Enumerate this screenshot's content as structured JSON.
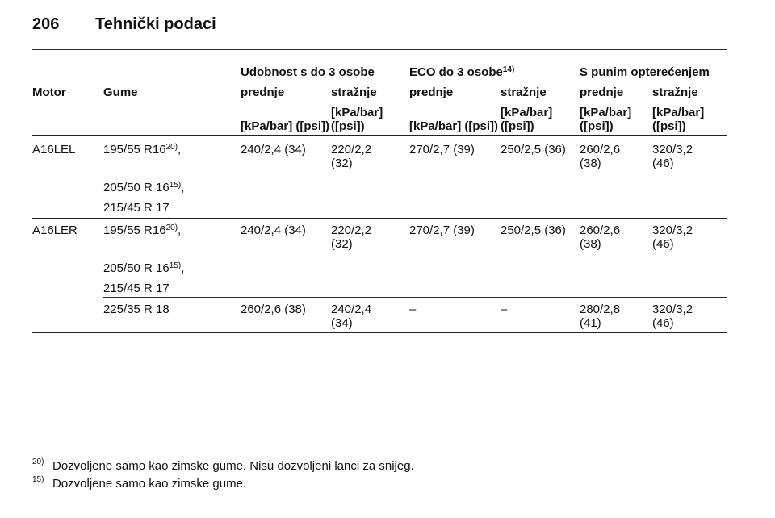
{
  "header": {
    "page_number": "206",
    "title": "Tehnički podaci"
  },
  "table": {
    "group_headers": [
      {
        "text": "Udobnost s do 3 osobe"
      },
      {
        "text": "ECO do 3 osobe",
        "footnote": "14)"
      },
      {
        "text": "S punim opterećenjem"
      }
    ],
    "column_headers": [
      "Motor",
      "Gume",
      "prednje",
      "stražnje",
      "prednje",
      "stražnje",
      "prednje",
      "stražnje"
    ],
    "units": [
      "[kPa/bar] ([psi])",
      "[kPa/bar]\n([psi])",
      "[kPa/bar] ([psi])",
      "[kPa/bar]\n([psi])",
      "[kPa/bar]\n([psi])",
      "[kPa/bar]\n([psi])"
    ],
    "rows": [
      {
        "motor": "A16LEL",
        "tyres": [
          {
            "text": "195/55 R16",
            "footnote": "20)",
            "suffix": ","
          },
          {
            "text": "205/50 R 16",
            "footnote": "15)",
            "suffix": ","
          },
          {
            "text": "215/45 R 17"
          }
        ],
        "pressures": [
          "240/2,4 (34)",
          "220/2,2\n(32)",
          "270/2,7 (39)",
          "250/2,5 (36)",
          "260/2,6\n(38)",
          "320/3,2\n(46)"
        ]
      },
      {
        "motor": "A16LER",
        "tyres": [
          {
            "text": "195/55 R16",
            "footnote": "20)",
            "suffix": ","
          },
          {
            "text": "205/50 R 16",
            "footnote": "15)",
            "suffix": ","
          },
          {
            "text": "215/45 R 17"
          }
        ],
        "pressures": [
          "240/2,4 (34)",
          "220/2,2\n(32)",
          "270/2,7 (39)",
          "250/2,5 (36)",
          "260/2,6\n(38)",
          "320/3,2\n(46)"
        ]
      },
      {
        "tyres": [
          {
            "text": "225/35 R 18"
          }
        ],
        "pressures": [
          "260/2,6 (38)",
          "240/2,4\n(34)",
          "–",
          "–",
          "280/2,8\n(41)",
          "320/3,2\n(46)"
        ]
      }
    ]
  },
  "footnotes": [
    {
      "mark": "20)",
      "text": "Dozvoljene samo kao zimske gume. Nisu dozvoljeni lanci za snijeg."
    },
    {
      "mark": "15)",
      "text": "Dozvoljene samo kao zimske gume."
    }
  ]
}
